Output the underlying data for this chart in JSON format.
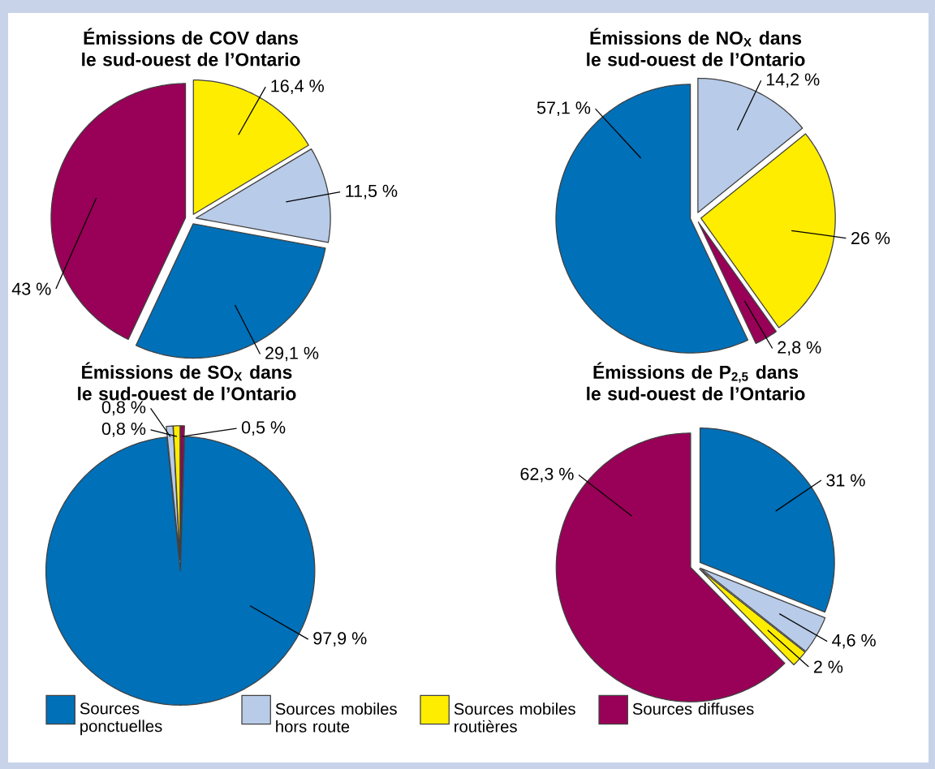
{
  "chart_data": [
    {
      "type": "pie",
      "title": "Émissions de COV dans le sud-ouest de l’Ontario",
      "categories": [
        null,
        null,
        null,
        null
      ],
      "values": [
        16.4,
        11.5,
        29.1,
        43
      ],
      "colors": [
        "#ffed00",
        "#b8cbe8",
        "#0070b8",
        "#990057"
      ],
      "value_labels": [
        "16,4 %",
        "11,5 %",
        "29,1 %",
        "43 %"
      ]
    },
    {
      "type": "pie",
      "title": "Émissions de NO$_{X}$ dans le sud-ouest de l’Ontario",
      "categories": [
        null,
        null,
        null,
        null
      ],
      "values": [
        14.2,
        26,
        2.8,
        57.1
      ],
      "colors": [
        "#b8cbe8",
        "#ffed00",
        "#990057",
        "#0070b8"
      ],
      "value_labels": [
        "14,2 %",
        "26 %",
        "2,8 %",
        "57,1 %"
      ]
    },
    {
      "type": "pie",
      "title": "Émissions de SO$_{X}$ dans le sud-ouest de l’Ontario",
      "categories": [
        null,
        null,
        null,
        null
      ],
      "values": [
        0.5,
        97.9,
        0.8,
        0.8
      ],
      "colors": [
        "#990057",
        "#0070b8",
        "#b8cbe8",
        "#ffed00"
      ],
      "value_labels": [
        "0,5 %",
        "97,9 %",
        "0,8 %",
        "0,8 %"
      ]
    },
    {
      "type": "pie",
      "title": "Émissions de P$_{2,5}$ dans le sud-ouest de l’Ontario",
      "categories": [
        "Sources ponctuelles",
        "Sources mobiles hors route",
        "Sources mobiles routières",
        "Sources diffuses"
      ],
      "values": [
        31,
        4.6,
        2,
        62.3
      ],
      "colors": [
        "#0070b8",
        "#b8cbe8",
        "#ffed00",
        "#990057"
      ],
      "value_labels": [
        "31 %",
        "4,6 %",
        "2 %",
        "62,3 %"
      ],
      "legend": "bottom"
    }
  ]
}
